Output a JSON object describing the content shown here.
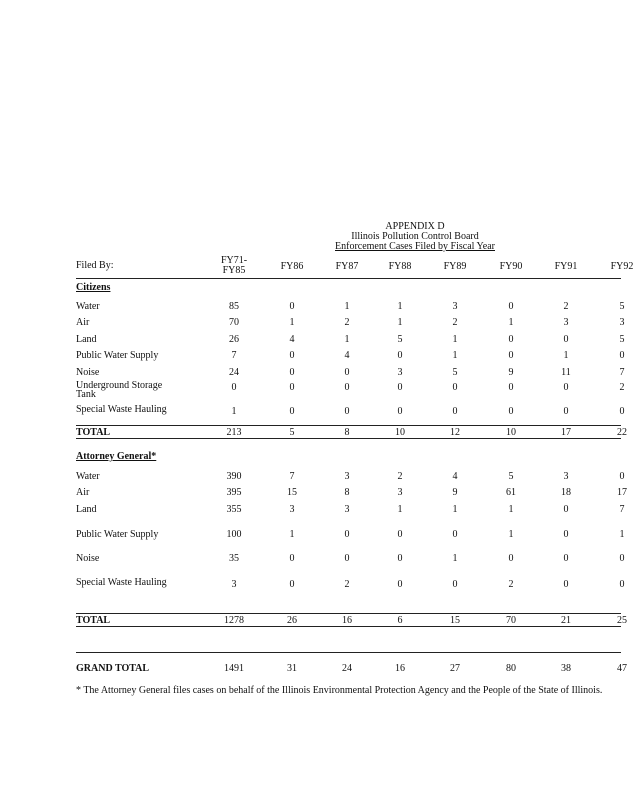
{
  "header": {
    "title": "APPENDIX D",
    "subtitle": "Illinois Pollution Control Board",
    "caption": "Enforcement Cases Filed by Fiscal Year"
  },
  "table": {
    "columns": [
      "Filed By:",
      "FY71- FY85",
      "FY86",
      "FY87",
      "FY88",
      "FY89",
      "FY90",
      "FY91",
      "FY92"
    ],
    "sections": [
      {
        "heading": "Citizens",
        "rows": [
          {
            "label": "Water",
            "values": [
              85,
              0,
              1,
              1,
              3,
              0,
              2,
              5
            ]
          },
          {
            "label": "Air",
            "values": [
              70,
              1,
              2,
              1,
              2,
              1,
              3,
              3
            ]
          },
          {
            "label": "Land",
            "values": [
              26,
              4,
              1,
              5,
              1,
              0,
              0,
              5
            ]
          },
          {
            "label": "Public Water Supply",
            "values": [
              7,
              0,
              4,
              0,
              1,
              0,
              1,
              0
            ]
          },
          {
            "label": "Noise",
            "values": [
              24,
              0,
              0,
              3,
              5,
              9,
              11,
              7
            ]
          },
          {
            "label": "Underground Storage Tank",
            "values": [
              0,
              0,
              0,
              0,
              0,
              0,
              0,
              2
            ]
          },
          {
            "label": "Special Waste Hauling",
            "values": [
              1,
              0,
              0,
              0,
              0,
              0,
              0,
              0
            ]
          }
        ],
        "total": {
          "label": "TOTAL",
          "values": [
            213,
            5,
            8,
            10,
            12,
            10,
            17,
            22
          ]
        }
      },
      {
        "heading": "Attorney General*",
        "rows": [
          {
            "label": "Water",
            "values": [
              390,
              7,
              3,
              2,
              4,
              5,
              3,
              0
            ]
          },
          {
            "label": "Air",
            "values": [
              395,
              15,
              8,
              3,
              9,
              61,
              18,
              17
            ]
          },
          {
            "label": "Land",
            "values": [
              355,
              3,
              3,
              1,
              1,
              1,
              0,
              7
            ]
          },
          {
            "label": "Public Water Supply",
            "values": [
              100,
              1,
              0,
              0,
              0,
              1,
              0,
              1
            ]
          },
          {
            "label": "Noise",
            "values": [
              35,
              0,
              0,
              0,
              1,
              0,
              0,
              0
            ]
          },
          {
            "label": "Special Waste Hauling",
            "values": [
              3,
              0,
              2,
              0,
              0,
              2,
              0,
              0
            ]
          }
        ],
        "total": {
          "label": "TOTAL",
          "values": [
            1278,
            26,
            16,
            6,
            15,
            70,
            21,
            25
          ]
        }
      }
    ],
    "grand_total": {
      "label": "GRAND TOTAL",
      "values": [
        1491,
        31,
        24,
        16,
        27,
        80,
        38,
        47
      ]
    }
  },
  "footnote": "* The Attorney General files cases on behalf of the Illinois Environmental Protection Agency and the People of the State of Illinois."
}
